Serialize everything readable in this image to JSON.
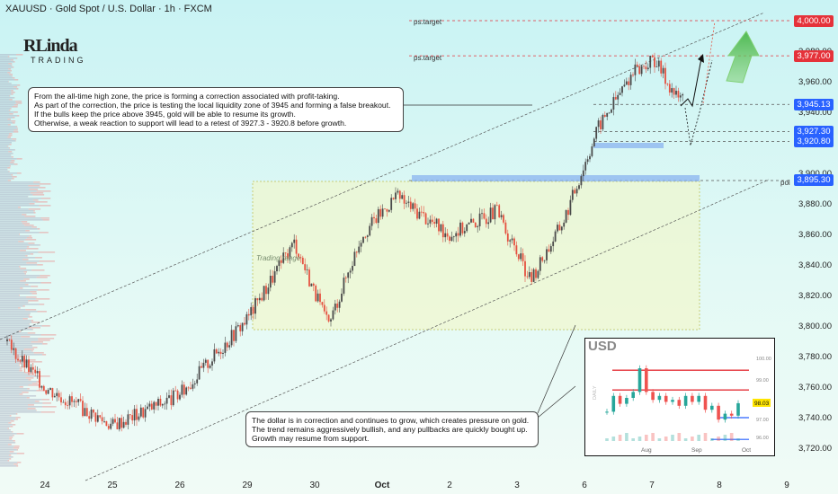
{
  "header": {
    "title": "XAUUSD · Gold Spot / U.S. Dollar · 1h · FXCM"
  },
  "logo": {
    "main": "RLinda",
    "sub": "TRADING"
  },
  "notes": {
    "top": [
      "From the all-time high zone, the price is forming a correction associated with profit-taking.",
      "As part of the correction, the price is testing the local liquidity zone of 3945 and forming a false breakout.",
      "If the bulls keep the price above 3945, gold will be able to resume its growth.",
      "Otherwise, a weak reaction to support will lead to a retest of 3927.3 - 3920.8 before growth."
    ],
    "bottom": [
      "The dollar is in correction and continues to grow, which creates pressure on gold.",
      "The trend remains aggressively bullish, and any pullbacks are quickly bought up.",
      "Growth may resume from support."
    ]
  },
  "labels": {
    "trading_range": "Trading range",
    "ps_target_1": "ps.target",
    "ps_target_2": "ps.target",
    "poi": "poi"
  },
  "price_tags": [
    {
      "value": 4000.0,
      "text": "4,000.00",
      "color": "#e5323a"
    },
    {
      "value": 3977.0,
      "text": "3,977.00",
      "color": "#e5323a"
    },
    {
      "value": 3945.13,
      "text": "3,945.13",
      "color": "#2962ff"
    },
    {
      "value": 3927.3,
      "text": "3,927.30",
      "color": "#2962ff"
    },
    {
      "value": 3920.8,
      "text": "3,920.80",
      "color": "#2962ff"
    },
    {
      "value": 3895.3,
      "text": "3,895.30",
      "color": "#2962ff"
    }
  ],
  "inset": {
    "title": "USD",
    "y_ticks": [
      "100.00",
      "99.00",
      "97.00",
      "96.00"
    ],
    "current_tag": "98.03",
    "x_ticks": [
      "Aug",
      "Sep",
      "Oct"
    ],
    "side_label": "DAILY"
  },
  "colors": {
    "up": "#26a69a",
    "down": "#ef5350",
    "candle_up": "#4a4a4a",
    "candle_down": "#e55140",
    "accent_red": "#e5323a",
    "accent_blue": "#2962ff"
  },
  "chart_data": {
    "type": "candlestick",
    "symbol": "XAUUSD",
    "timeframe": "1h",
    "x_tick_labels": [
      "24",
      "25",
      "26",
      "29",
      "30",
      "Oct",
      "2",
      "3",
      "6",
      "7",
      "8",
      "9"
    ],
    "y_tick_labels": [
      "3,720.00",
      "3,740.00",
      "3,760.00",
      "3,780.00",
      "3,800.00",
      "3,820.00",
      "3,840.00",
      "3,860.00",
      "3,880.00",
      "3,900.00",
      "3,920.00",
      "3,940.00",
      "3,960.00",
      "3,980.00"
    ],
    "ylim": [
      3705,
      4010
    ],
    "levels": {
      "ps_target_high": 4000.0,
      "ps_target_low": 3977.0,
      "liquidity_zone": 3945.13,
      "support_upper": 3927.3,
      "support_lower": 3920.8,
      "poi": 3895.3
    },
    "trading_range": {
      "from": "26",
      "to": "7",
      "low": 3800,
      "high": 3898
    },
    "price_path": [
      {
        "date": "23",
        "close": 3790
      },
      {
        "date": "24",
        "close": 3760
      },
      {
        "date": "25",
        "close": 3735
      },
      {
        "date": "26",
        "close": 3755
      },
      {
        "date": "29",
        "close": 3805
      },
      {
        "date": "30",
        "close": 3855
      },
      {
        "date": "30",
        "close": 3800
      },
      {
        "date": "Oct",
        "close": 3860
      },
      {
        "date": "Oct",
        "close": 3885
      },
      {
        "date": "2",
        "close": 3860
      },
      {
        "date": "3",
        "close": 3875
      },
      {
        "date": "3",
        "close": 3830
      },
      {
        "date": "6",
        "close": 3870
      },
      {
        "date": "6",
        "close": 3930
      },
      {
        "date": "7",
        "close": 3965
      },
      {
        "date": "7",
        "close": 3975
      },
      {
        "date": "7",
        "close": 3950
      }
    ]
  }
}
